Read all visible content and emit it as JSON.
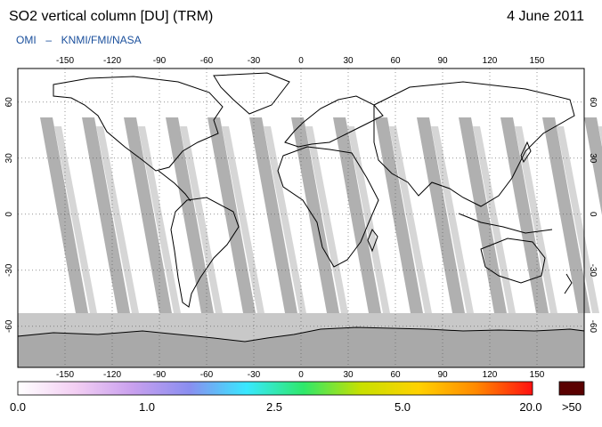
{
  "header": {
    "title": "SO2 vertical column [DU] (TRM)",
    "date": "4 June 2011",
    "subtitle_left": "OMI",
    "subtitle_sep": "–",
    "subtitle_right": "KNMI/FMI/NASA"
  },
  "map": {
    "projection": "equirectangular",
    "lon_ticks": [
      "-150",
      "-120",
      "-90",
      "-60",
      "-30",
      "0",
      "30",
      "60",
      "90",
      "120",
      "150"
    ],
    "lat_ticks": [
      "60",
      "30",
      "0",
      "-30",
      "-60"
    ],
    "gridlines": true,
    "colors": {
      "ocean_background": "#ffffff",
      "no_data_swath_gap": "#a7a7a7",
      "data_swath_edge": "#d2d2d2",
      "polar_no_data": "#c8c8c8",
      "antarctica": "#a9a9a9",
      "coastline": "#000000"
    }
  },
  "colorbar": {
    "labels": [
      "0.0",
      "1.0",
      "2.5",
      "5.0",
      "20.0",
      ">50"
    ],
    "stops": [
      "#ffffff",
      "#f3cff3",
      "#c9a0ee",
      "#8a8ef0",
      "#38e8ff",
      "#2ee86a",
      "#c8e000",
      "#ffd200",
      "#ff8a00",
      "#ff1010"
    ],
    "overflow_color": "#5a0000"
  }
}
